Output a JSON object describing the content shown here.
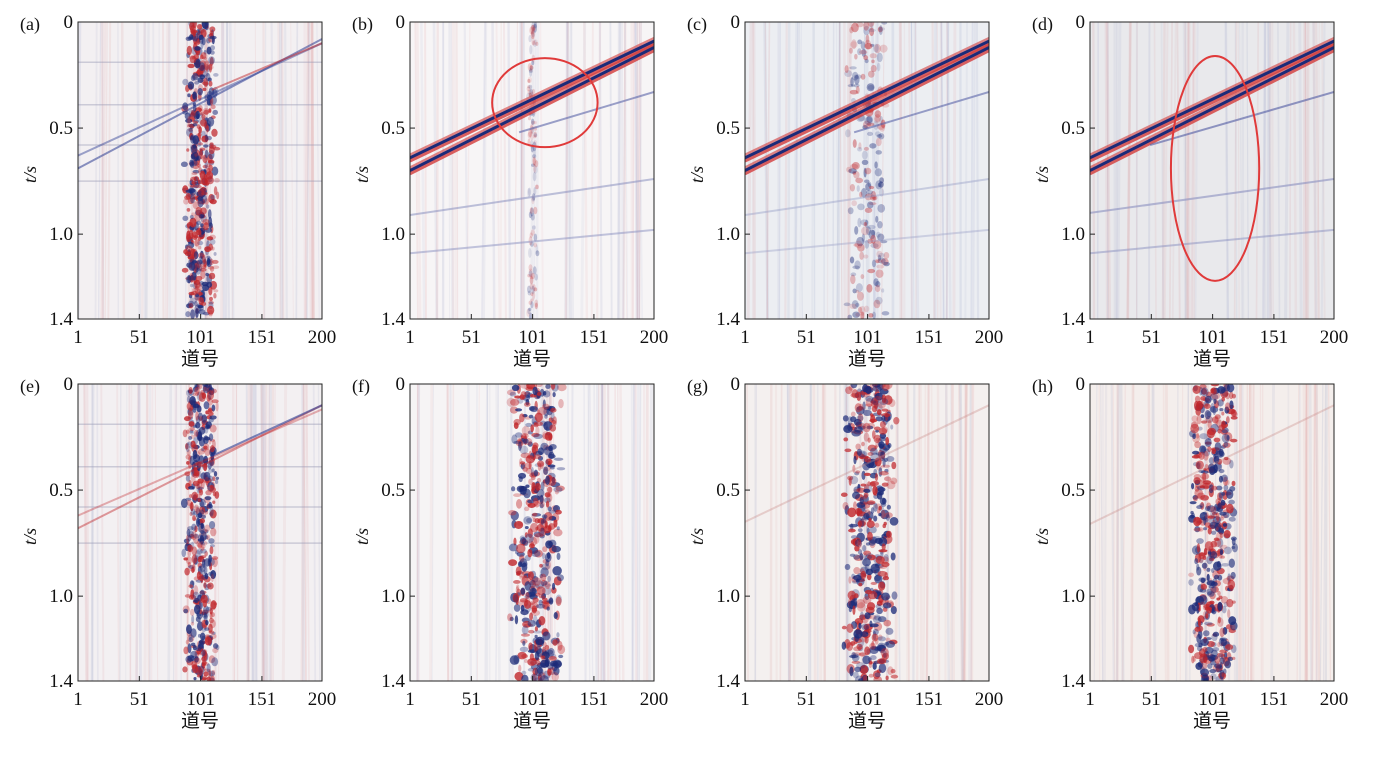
{
  "chart_data": [
    {
      "type": "heatmap",
      "panel_label": "(a)",
      "xlabel": "道号",
      "ylabel": "t/s",
      "x_ticks": [
        "1",
        "51",
        "101",
        "151",
        "200"
      ],
      "y_ticks": [
        "0",
        "0.5",
        "1.0",
        "1.4"
      ],
      "xlim": [
        1,
        200
      ],
      "ylim": [
        0,
        1.4
      ],
      "content": {
        "background": "#f3f0f2",
        "events": [
          {
            "x": [
              1,
              200
            ],
            "t": [
              0.69,
              0.08
            ],
            "color": "#2c3c92",
            "opacity": 0.55
          },
          {
            "x": [
              1,
              200
            ],
            "t": [
              0.63,
              0.1
            ],
            "color": "#2c3c92",
            "opacity": 0.45
          },
          {
            "x": [
              110,
              200
            ],
            "t": [
              0.32,
              0.1
            ],
            "color": "#c0262b",
            "opacity": 0.5
          }
        ],
        "noise_band": {
          "center": 101,
          "width": 22,
          "t_range": [
            0,
            1.4
          ],
          "intensity": 1.0
        },
        "horizontal_bands": [
          0.19,
          0.39,
          0.58,
          0.75
        ]
      }
    },
    {
      "type": "heatmap",
      "panel_label": "(b)",
      "xlabel": "道号",
      "ylabel": "t/s",
      "x_ticks": [
        "1",
        "51",
        "101",
        "151",
        "200"
      ],
      "y_ticks": [
        "0",
        "0.5",
        "1.0",
        "1.4"
      ],
      "xlim": [
        1,
        200
      ],
      "ylim": [
        0,
        1.4
      ],
      "content": {
        "background": "#f7f5f6",
        "events": [
          {
            "x": [
              1,
              200
            ],
            "t": [
              0.64,
              0.09
            ],
            "color": "#1b2a78",
            "opacity": 1.0
          },
          {
            "x": [
              1,
              200
            ],
            "t": [
              0.7,
              0.12
            ],
            "color": "#1b2a78",
            "opacity": 1.0
          },
          {
            "x": [
              1,
              200
            ],
            "t": [
              0.91,
              0.74
            ],
            "color": "#8a8fc0",
            "opacity": 0.55
          },
          {
            "x": [
              1,
              200
            ],
            "t": [
              1.09,
              0.98
            ],
            "color": "#8a8fc0",
            "opacity": 0.5
          },
          {
            "x": [
              90,
              200
            ],
            "t": [
              0.52,
              0.33
            ],
            "color": "#5a64a8",
            "opacity": 0.6
          }
        ],
        "noise_band": {
          "center": 101,
          "width": 6,
          "t_range": [
            0,
            1.4
          ],
          "intensity": 0.15
        },
        "ellipse": {
          "cx": 111,
          "cy": 0.38,
          "rx": 43,
          "ry": 0.21,
          "color": "#e03a3a"
        }
      }
    },
    {
      "type": "heatmap",
      "panel_label": "(c)",
      "xlabel": "道号",
      "ylabel": "t/s",
      "x_ticks": [
        "1",
        "51",
        "101",
        "151",
        "200"
      ],
      "y_ticks": [
        "0",
        "0.5",
        "1.0",
        "1.4"
      ],
      "xlim": [
        1,
        200
      ],
      "ylim": [
        0,
        1.4
      ],
      "content": {
        "background": "#eceef2",
        "events": [
          {
            "x": [
              1,
              200
            ],
            "t": [
              0.64,
              0.09
            ],
            "color": "#1b2a78",
            "opacity": 1.0
          },
          {
            "x": [
              1,
              200
            ],
            "t": [
              0.7,
              0.12
            ],
            "color": "#1b2a78",
            "opacity": 1.0
          },
          {
            "x": [
              1,
              200
            ],
            "t": [
              0.91,
              0.74
            ],
            "color": "#9aa0c8",
            "opacity": 0.45
          },
          {
            "x": [
              1,
              200
            ],
            "t": [
              1.09,
              0.98
            ],
            "color": "#9aa0c8",
            "opacity": 0.4
          },
          {
            "x": [
              90,
              200
            ],
            "t": [
              0.52,
              0.33
            ],
            "color": "#5a64a8",
            "opacity": 0.6
          }
        ],
        "noise_band": {
          "center": 101,
          "width": 28,
          "t_range": [
            0,
            1.4
          ],
          "intensity": 0.35
        }
      }
    },
    {
      "type": "heatmap",
      "panel_label": "(d)",
      "xlabel": "道号",
      "ylabel": "t/s",
      "x_ticks": [
        "1",
        "51",
        "101",
        "151",
        "200"
      ],
      "y_ticks": [
        "0",
        "0.5",
        "1.0",
        "1.4"
      ],
      "xlim": [
        1,
        200
      ],
      "ylim": [
        0,
        1.4
      ],
      "content": {
        "background": "#e9e9ec",
        "events": [
          {
            "x": [
              1,
              200
            ],
            "t": [
              0.64,
              0.09
            ],
            "color": "#1b2a78",
            "opacity": 1.0
          },
          {
            "x": [
              1,
              200
            ],
            "t": [
              0.7,
              0.12
            ],
            "color": "#1b2a78",
            "opacity": 1.0
          },
          {
            "x": [
              1,
              200
            ],
            "t": [
              0.9,
              0.74
            ],
            "color": "#8a8fc0",
            "opacity": 0.6
          },
          {
            "x": [
              1,
              200
            ],
            "t": [
              1.09,
              0.98
            ],
            "color": "#8a8fc0",
            "opacity": 0.5
          },
          {
            "x": [
              50,
              200
            ],
            "t": [
              0.58,
              0.33
            ],
            "color": "#5a64a8",
            "opacity": 0.65
          }
        ],
        "ellipse": {
          "cx": 103,
          "cy": 0.69,
          "rx": 36,
          "ry": 0.53,
          "color": "#e03a3a"
        }
      }
    },
    {
      "type": "heatmap",
      "panel_label": "(e)",
      "xlabel": "道号",
      "ylabel": "t/s",
      "x_ticks": [
        "1",
        "51",
        "101",
        "151",
        "200"
      ],
      "y_ticks": [
        "0",
        "0.5",
        "1.0",
        "1.4"
      ],
      "xlim": [
        1,
        200
      ],
      "ylim": [
        0,
        1.4
      ],
      "content": {
        "background": "#f3f0f2",
        "events": [
          {
            "x": [
              1,
              200
            ],
            "t": [
              0.68,
              0.1
            ],
            "color": "#c0262b",
            "opacity": 0.45
          },
          {
            "x": [
              1,
              200
            ],
            "t": [
              0.62,
              0.12
            ],
            "color": "#c0262b",
            "opacity": 0.35
          },
          {
            "x": [
              110,
              200
            ],
            "t": [
              0.34,
              0.1
            ],
            "color": "#2c3c92",
            "opacity": 0.6
          }
        ],
        "noise_band": {
          "center": 101,
          "width": 22,
          "t_range": [
            0,
            1.4
          ],
          "intensity": 1.0
        },
        "horizontal_bands": [
          0.19,
          0.39,
          0.58,
          0.75
        ]
      }
    },
    {
      "type": "heatmap",
      "panel_label": "(f)",
      "xlabel": "道号",
      "ylabel": "t/s",
      "x_ticks": [
        "1",
        "51",
        "101",
        "151",
        "200"
      ],
      "y_ticks": [
        "0",
        "0.5",
        "1.0",
        "1.4"
      ],
      "xlim": [
        1,
        200
      ],
      "ylim": [
        0,
        1.4
      ],
      "content": {
        "background": "#f6f4f5",
        "events": [],
        "noise_band": {
          "center": 104,
          "width": 34,
          "t_range": [
            0,
            1.4
          ],
          "intensity": 1.0
        }
      }
    },
    {
      "type": "heatmap",
      "panel_label": "(g)",
      "xlabel": "道号",
      "ylabel": "t/s",
      "x_ticks": [
        "1",
        "51",
        "101",
        "151",
        "200"
      ],
      "y_ticks": [
        "0",
        "0.5",
        "1.0",
        "1.4"
      ],
      "xlim": [
        1,
        200
      ],
      "ylim": [
        0,
        1.4
      ],
      "content": {
        "background": "#f4f0ef",
        "events": [
          {
            "x": [
              1,
              200
            ],
            "t": [
              0.65,
              0.1
            ],
            "color": "#c98a86",
            "opacity": 0.35
          }
        ],
        "noise_band": {
          "center": 103,
          "width": 34,
          "t_range": [
            0,
            1.4
          ],
          "intensity": 1.0
        }
      }
    },
    {
      "type": "heatmap",
      "panel_label": "(h)",
      "xlabel": "道号",
      "ylabel": "t/s",
      "x_ticks": [
        "1",
        "51",
        "101",
        "151",
        "200"
      ],
      "y_ticks": [
        "0",
        "0.5",
        "1.0",
        "1.4"
      ],
      "xlim": [
        1,
        200
      ],
      "ylim": [
        0,
        1.4
      ],
      "content": {
        "background": "#f4eeec",
        "events": [
          {
            "x": [
              1,
              200
            ],
            "t": [
              0.66,
              0.1
            ],
            "color": "#c98a86",
            "opacity": 0.35
          }
        ],
        "noise_band": {
          "center": 101,
          "width": 30,
          "t_range": [
            0,
            1.4
          ],
          "intensity": 1.0
        }
      }
    }
  ]
}
